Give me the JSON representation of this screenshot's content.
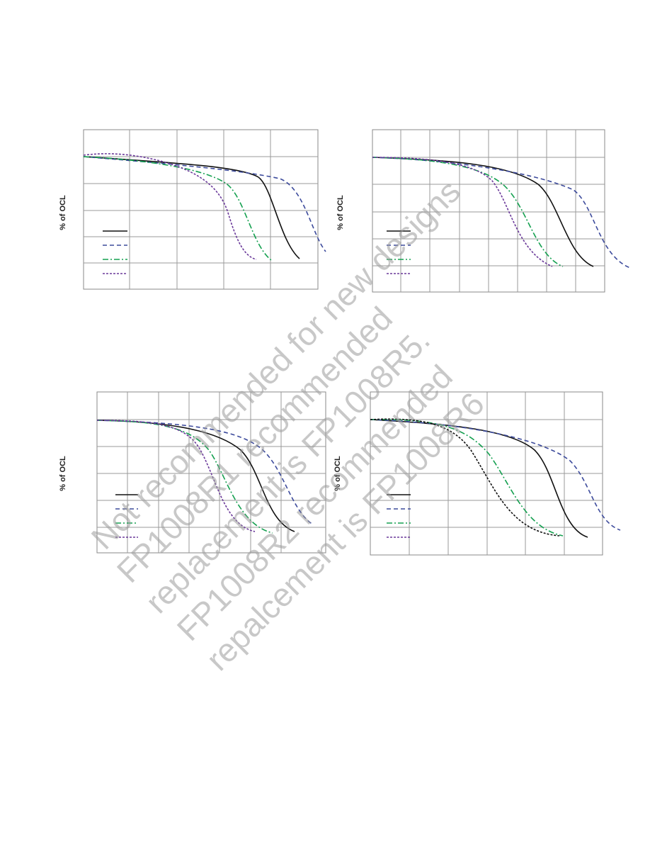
{
  "panels": [
    {
      "y_label": "% of OCL"
    },
    {
      "y_label": "% of OCL"
    },
    {
      "y_label": "% of OCL"
    },
    {
      "y_label": "% of OCL"
    }
  ],
  "watermark": [
    "Not recommended for new designs",
    "FP1008R1 recommended",
    "replacement is FP1008R5.",
    "FP1008R2 recommended",
    "repalcement is FP1008R6"
  ]
}
